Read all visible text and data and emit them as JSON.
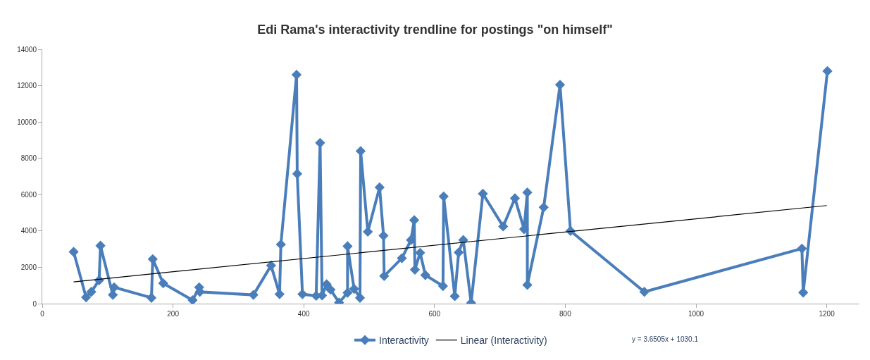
{
  "chart_data": {
    "type": "line",
    "title": "Edi Rama's interactivity trendline for postings \"on himself\"",
    "xlim": [
      0,
      1250
    ],
    "xticks": [
      0,
      200,
      400,
      600,
      800,
      1000,
      1200
    ],
    "ylim": [
      0,
      14000
    ],
    "yticks": [
      0,
      2000,
      4000,
      6000,
      8000,
      10000,
      12000,
      14000
    ],
    "legend": "bottom",
    "annotations": [
      "y = 3.6505x + 1030.1"
    ],
    "series": [
      {
        "name": "Interactivity",
        "color": "#4a7ebb",
        "marker": "diamond",
        "x": [
          48,
          67,
          75,
          87,
          89,
          108,
          110,
          167,
          169,
          185,
          230,
          240,
          241,
          323,
          350,
          363,
          365,
          389,
          390,
          398,
          419,
          425,
          428,
          435,
          441,
          454,
          467,
          467,
          477,
          486,
          487,
          498,
          516,
          522,
          523,
          550,
          564,
          569,
          570,
          578,
          586,
          613,
          614,
          631,
          637,
          644,
          656,
          674,
          705,
          723,
          737,
          742,
          742,
          767,
          792,
          808,
          921,
          1162,
          1164,
          1201
        ],
        "values": [
          2850,
          350,
          650,
          1290,
          3190,
          480,
          900,
          320,
          2450,
          1120,
          190,
          900,
          650,
          480,
          2100,
          520,
          3260,
          12600,
          7150,
          520,
          430,
          8850,
          450,
          1070,
          770,
          60,
          600,
          3160,
          810,
          320,
          8400,
          3960,
          6400,
          3740,
          1520,
          2500,
          3500,
          4600,
          1870,
          2800,
          1570,
          970,
          5900,
          410,
          2820,
          3500,
          40,
          6050,
          4250,
          5800,
          4100,
          6120,
          1030,
          5300,
          12050,
          4000,
          650,
          3030,
          610,
          12800
        ]
      },
      {
        "name": "Linear (Interactivity)",
        "type": "line",
        "color": "#000000",
        "marker": "none",
        "x": [
          48,
          1200
        ],
        "values": [
          1200,
          5400
        ]
      }
    ]
  }
}
